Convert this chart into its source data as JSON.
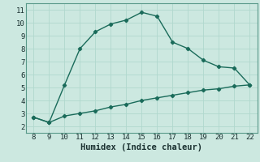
{
  "title": "",
  "xlabel": "Humidex (Indice chaleur)",
  "ylabel": "",
  "bg_color": "#cce8e0",
  "line_color": "#1a6b5a",
  "grid_color": "#b0d8ce",
  "upper_x": [
    8,
    9,
    10,
    11,
    12,
    13,
    14,
    15,
    16,
    17,
    18,
    19,
    20,
    21,
    22
  ],
  "upper_y": [
    2.7,
    2.3,
    5.2,
    8.0,
    9.3,
    9.9,
    10.2,
    10.8,
    10.5,
    8.5,
    8.0,
    7.1,
    6.6,
    6.5,
    5.2
  ],
  "lower_x": [
    8,
    9,
    10,
    11,
    12,
    13,
    14,
    15,
    16,
    17,
    18,
    19,
    20,
    21,
    22
  ],
  "lower_y": [
    2.7,
    2.3,
    2.8,
    3.0,
    3.2,
    3.5,
    3.7,
    4.0,
    4.2,
    4.4,
    4.6,
    4.8,
    4.9,
    5.1,
    5.2
  ],
  "xlim": [
    7.5,
    22.5
  ],
  "ylim": [
    1.5,
    11.5
  ],
  "xticks": [
    8,
    9,
    10,
    11,
    12,
    13,
    14,
    15,
    16,
    17,
    18,
    19,
    20,
    21,
    22
  ],
  "yticks": [
    2,
    3,
    4,
    5,
    6,
    7,
    8,
    9,
    10,
    11
  ],
  "font_family": "monospace",
  "xlabel_fontsize": 7.5,
  "tick_fontsize": 6.5,
  "linewidth": 1.0,
  "markersize": 2.2,
  "spine_color": "#5a9a8a"
}
